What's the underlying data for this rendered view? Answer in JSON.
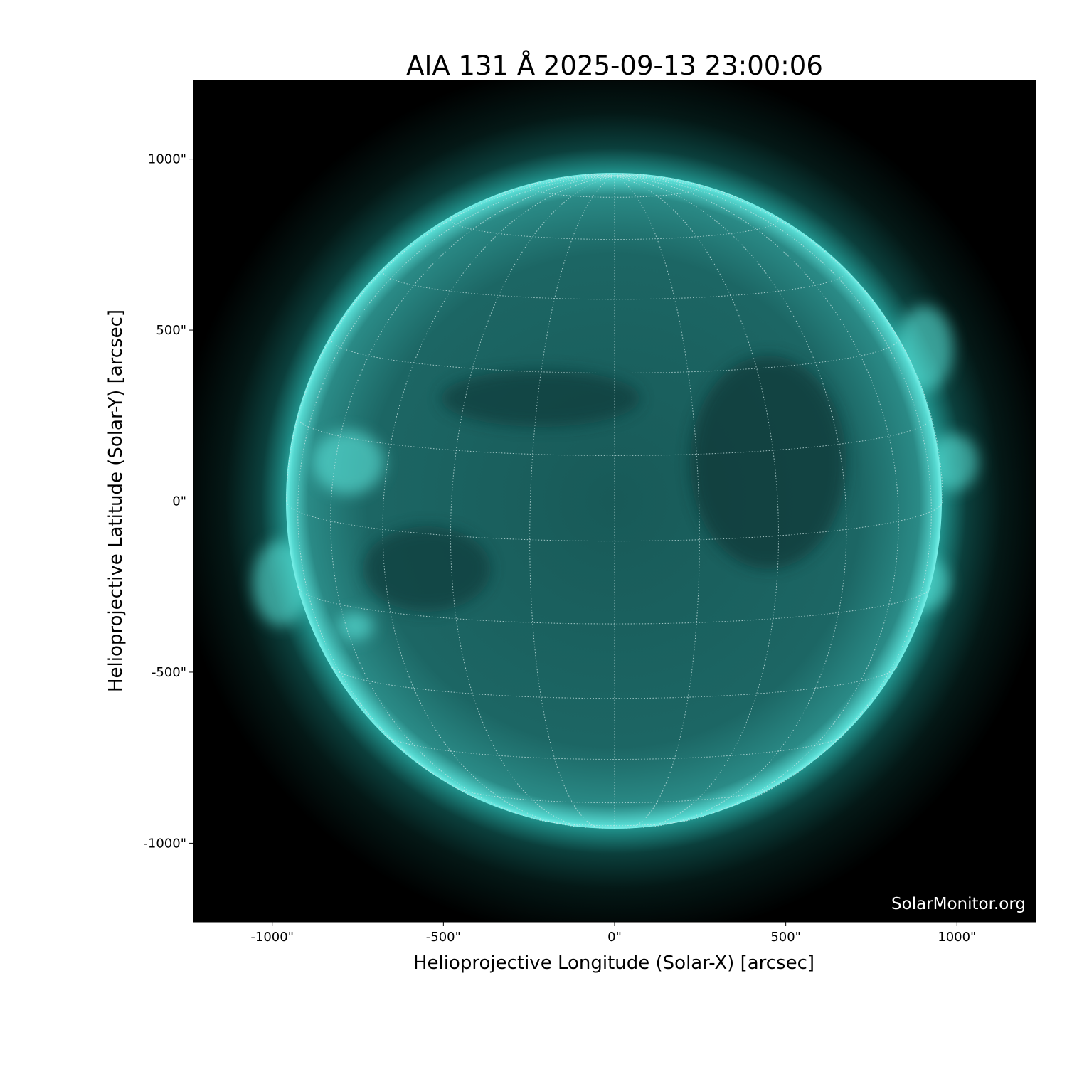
{
  "chart_data": {
    "type": "heatmap",
    "title": "AIA 131 Å 2025-09-13 23:00:06",
    "xlabel": "Helioprojective Longitude (Solar-X) [arcsec]",
    "ylabel": "Helioprojective Latitude (Solar-Y) [arcsec]",
    "xlim": [
      -1230,
      1230
    ],
    "ylim": [
      -1230,
      1230
    ],
    "xticks": [
      -1000,
      -500,
      0,
      500,
      1000
    ],
    "yticks": [
      -1000,
      -500,
      0,
      500,
      1000
    ],
    "xtick_labels": [
      "-1000\"",
      "-500\"",
      "0\"",
      "500\"",
      "1000\""
    ],
    "ytick_labels": [
      "-1000\"",
      "-500\"",
      "0\"",
      "500\"",
      "1000\""
    ],
    "solar_radius_arcsec": 958,
    "grid": true,
    "grid_spacing_deg": 15,
    "colormap": "sdoaia131",
    "colors": {
      "disk": "#1a6b6b",
      "limb": "#4ff0e6",
      "background": "#000000",
      "grid": "#cfe8e8"
    },
    "watermark": "SolarMonitor.org"
  }
}
